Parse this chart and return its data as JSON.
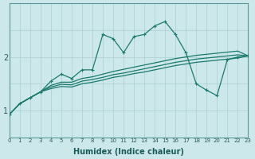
{
  "xlabel": "Humidex (Indice chaleur)",
  "bg_color": "#cce8ea",
  "line_color": "#1a7a6e",
  "grid_color": "#aacfd4",
  "x_data": [
    0,
    1,
    2,
    3,
    4,
    5,
    6,
    7,
    8,
    9,
    10,
    11,
    12,
    13,
    14,
    15,
    16,
    17,
    18,
    19,
    20,
    21,
    22,
    23
  ],
  "series1": [
    0.93,
    1.13,
    1.24,
    1.35,
    1.55,
    1.68,
    1.6,
    1.76,
    1.76,
    2.42,
    2.34,
    2.08,
    2.38,
    2.42,
    2.58,
    2.66,
    2.42,
    2.08,
    1.5,
    1.38,
    1.28,
    1.95,
    2.0,
    2.02
  ],
  "series2": [
    0.93,
    1.13,
    1.24,
    1.35,
    1.47,
    1.53,
    1.53,
    1.6,
    1.63,
    1.68,
    1.73,
    1.77,
    1.81,
    1.85,
    1.89,
    1.93,
    1.97,
    2.0,
    2.03,
    2.05,
    2.07,
    2.09,
    2.11,
    2.02
  ],
  "series3": [
    0.93,
    1.13,
    1.24,
    1.35,
    1.44,
    1.49,
    1.48,
    1.55,
    1.58,
    1.62,
    1.67,
    1.7,
    1.74,
    1.78,
    1.82,
    1.86,
    1.9,
    1.93,
    1.96,
    1.98,
    2.0,
    2.02,
    2.04,
    2.02
  ],
  "series4": [
    0.93,
    1.13,
    1.24,
    1.35,
    1.41,
    1.45,
    1.44,
    1.5,
    1.53,
    1.57,
    1.62,
    1.65,
    1.69,
    1.72,
    1.76,
    1.8,
    1.84,
    1.87,
    1.9,
    1.92,
    1.94,
    1.96,
    1.98,
    2.02
  ],
  "ylim": [
    0.75,
    2.85
  ],
  "xlim": [
    0,
    23
  ],
  "yticks": [
    1.0,
    2.0
  ],
  "ytick_labels": [
    "1",
    "2"
  ],
  "xtick_labels": [
    "0",
    "1",
    "2",
    "3",
    "4",
    "5",
    "6",
    "7",
    "8",
    "9",
    "10",
    "11",
    "12",
    "13",
    "14",
    "15",
    "16",
    "17",
    "18",
    "19",
    "20",
    "21",
    "22",
    "23"
  ]
}
